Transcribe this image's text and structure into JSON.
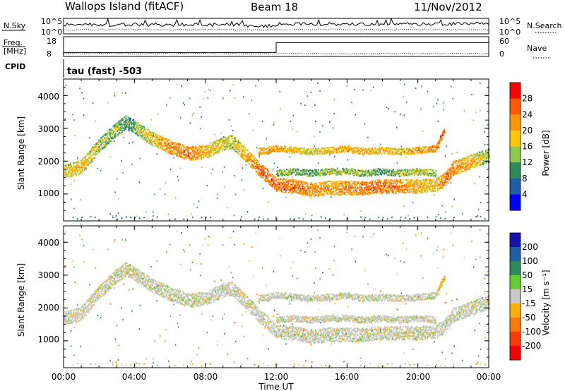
{
  "header": {
    "radar": "Wallops Island (fitACF)",
    "beam": "Beam 18",
    "date": "11/Nov/2012"
  },
  "noise": {
    "left_label": "N.Sky",
    "right_label": "N.Search",
    "left_ticks": [
      "10^5",
      "10^0"
    ],
    "right_ticks": [
      "10^5",
      "10^0"
    ]
  },
  "freq": {
    "left_label_1": "Freq.",
    "left_label_2": "[MHz]",
    "right_label": "Nave",
    "left_ticks": [
      "18",
      "8"
    ],
    "right_ticks": [
      "60",
      "0"
    ]
  },
  "cpid": {
    "label": "CPID",
    "program": "tau (fast) -503"
  },
  "power_panel": {
    "ylabel": "Slant Range [km]",
    "yticks": [
      "4000",
      "3000",
      "2000",
      "1000"
    ],
    "colorbar_label": "Power [dB]",
    "colorbar_ticks": [
      "28",
      "24",
      "20",
      "16",
      "12",
      "8",
      "4"
    ],
    "colorbar_colors": [
      "#ff0000",
      "#ff5a00",
      "#ff9600",
      "#ffc800",
      "#8fc84b",
      "#2e8b57",
      "#1e5fa8",
      "#0000ff"
    ]
  },
  "velocity_panel": {
    "ylabel": "Slant Range [km]",
    "yticks": [
      "4000",
      "3000",
      "2000",
      "1000"
    ],
    "colorbar_label": "Velocity [m s⁻¹]",
    "colorbar_ticks": [
      "200",
      "100",
      "50",
      "15",
      "-15",
      "-50",
      "-100",
      "-200"
    ],
    "colorbar_colors": [
      "#1414b4",
      "#1e5fa8",
      "#2e8b57",
      "#66cc33",
      "#c8c8c8",
      "#ffb000",
      "#ff7800",
      "#ff3c00",
      "#ff0000"
    ]
  },
  "xaxis": {
    "label": "Time UT",
    "ticks": [
      "00:00",
      "04:00",
      "08:00",
      "12:00",
      "16:00",
      "20:00",
      "00:00"
    ]
  },
  "chart_data": {
    "type": "heatmap",
    "title": "Wallops Island (fitACF)",
    "subtitle": "Beam 18 11/Nov/2012",
    "xlabel": "Time UT",
    "ylabel": "Slant Range [km]",
    "xlim": [
      0,
      24
    ],
    "ylim": [
      180,
      4500
    ],
    "frequency_mhz": {
      "times": [
        0,
        12,
        12,
        24
      ],
      "values": [
        10,
        10,
        15,
        15
      ]
    },
    "echo_bands": [
      {
        "name": "lower",
        "times": [
          0,
          1,
          2,
          3,
          3.5,
          4,
          5,
          6,
          7,
          8,
          9,
          9.5,
          10,
          11,
          12,
          13,
          14,
          15,
          16,
          17,
          18,
          19,
          20,
          21,
          21.5,
          22,
          23,
          24
        ],
        "ranges": [
          1700,
          1850,
          2500,
          3000,
          3200,
          3050,
          2700,
          2450,
          2250,
          2300,
          2550,
          2600,
          2350,
          1800,
          1300,
          1250,
          1150,
          1200,
          1200,
          1200,
          1250,
          1250,
          1250,
          1300,
          1450,
          1800,
          2000,
          2200
        ],
        "power_db": [
          18,
          20,
          16,
          14,
          12,
          14,
          20,
          24,
          26,
          22,
          18,
          16,
          20,
          26,
          26,
          26,
          24,
          22,
          24,
          26,
          26,
          24,
          22,
          20,
          26,
          24,
          22,
          14
        ],
        "velocity_ms": [
          0,
          0,
          0,
          0,
          0,
          0,
          0,
          0,
          0,
          0,
          0,
          0,
          0,
          0,
          0,
          0,
          0,
          0,
          0,
          0,
          0,
          0,
          0,
          0,
          0,
          0,
          0,
          0
        ]
      },
      {
        "name": "upper",
        "times": [
          11,
          12,
          13,
          14,
          15,
          16,
          17,
          18,
          19,
          20,
          21,
          21.5
        ],
        "ranges": [
          2300,
          2400,
          2350,
          2300,
          2350,
          2400,
          2300,
          2350,
          2300,
          2350,
          2400,
          3000
        ],
        "power_db": [
          22,
          22,
          20,
          18,
          20,
          22,
          20,
          20,
          18,
          22,
          24,
          28
        ],
        "velocity_ms": [
          0,
          0,
          0,
          0,
          0,
          0,
          0,
          0,
          0,
          0,
          0,
          -50
        ]
      },
      {
        "name": "middle",
        "times": [
          12,
          13,
          14,
          15,
          16,
          17,
          18,
          19,
          20,
          21
        ],
        "ranges": [
          1650,
          1700,
          1650,
          1700,
          1700,
          1650,
          1700,
          1650,
          1700,
          1650
        ],
        "power_db": [
          14,
          14,
          12,
          14,
          16,
          14,
          12,
          14,
          16,
          14
        ],
        "velocity_ms": [
          0,
          0,
          0,
          0,
          0,
          0,
          0,
          0,
          0,
          0
        ]
      }
    ]
  }
}
